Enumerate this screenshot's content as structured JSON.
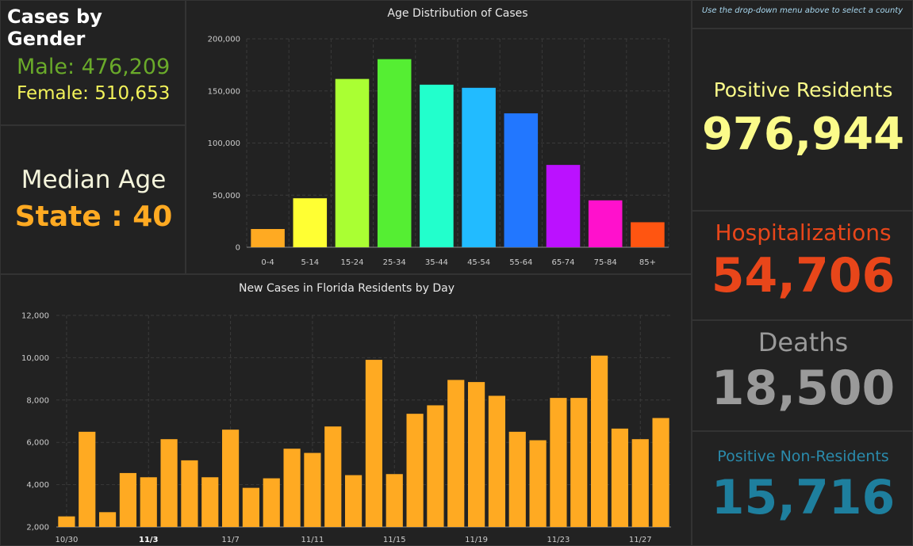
{
  "gender": {
    "title": "Cases by Gender",
    "male_text": "Male: 476,209",
    "female_text": "Female: 510,653",
    "male_color": "#6aaa2a",
    "female_color": "#f2f25a"
  },
  "median": {
    "title": "Median Age",
    "value_text": "State : 40"
  },
  "note": {
    "text": "Use the drop-down menu above to select a county"
  },
  "stats": {
    "positive_label": "Positive Residents",
    "positive_value": "976,944",
    "hosp_label": "Hospitalizations",
    "hosp_value": "54,706",
    "deaths_label": "Deaths",
    "deaths_value": "18,500",
    "nonres_label": "Positive Non-Residents",
    "nonres_value": "15,716"
  },
  "chart_data": [
    {
      "type": "bar",
      "title": "Age Distribution of Cases",
      "categories": [
        "0-4",
        "5-14",
        "15-24",
        "25-34",
        "35-44",
        "45-54",
        "55-64",
        "65-74",
        "75-84",
        "85+"
      ],
      "values": [
        17500,
        47000,
        161500,
        180500,
        156000,
        153000,
        128500,
        79000,
        45000,
        24000
      ],
      "colors": [
        "#ffaa22",
        "#ffff33",
        "#aaff33",
        "#55ee33",
        "#22ffcc",
        "#22bbff",
        "#2277ff",
        "#bb11ff",
        "#ff11cc",
        "#ff5511"
      ],
      "ylim": [
        0,
        200000
      ],
      "yticks": [
        0,
        50000,
        100000,
        150000,
        200000
      ],
      "ytick_labels": [
        "0",
        "50,000",
        "100,000",
        "150,000",
        "200,000"
      ],
      "grid": true
    },
    {
      "type": "bar",
      "title": "New Cases in Florida Residents by Day",
      "categories": [
        "10/30",
        "10/31",
        "11/1",
        "11/2",
        "11/3",
        "11/4",
        "11/5",
        "11/6",
        "11/7",
        "11/8",
        "11/9",
        "11/10",
        "11/11",
        "11/12",
        "11/13",
        "11/14",
        "11/15",
        "11/16",
        "11/17",
        "11/18",
        "11/19",
        "11/20",
        "11/21",
        "11/22",
        "11/23",
        "11/24",
        "11/25",
        "11/26",
        "11/27",
        "11/28"
      ],
      "values": [
        2500,
        6500,
        2700,
        4550,
        4350,
        6150,
        5150,
        4350,
        6600,
        3850,
        4300,
        5700,
        5500,
        6750,
        4450,
        9900,
        4500,
        7350,
        7750,
        8950,
        8850,
        8200,
        6500,
        6100,
        8100,
        8100,
        10100,
        6650,
        6150,
        7150
      ],
      "color": "#ffaa22",
      "ylim": [
        2000,
        12000
      ],
      "yticks": [
        2000,
        4000,
        6000,
        8000,
        10000,
        12000
      ],
      "ytick_labels": [
        "2,000",
        "4,000",
        "6,000",
        "8,000",
        "10,000",
        "12,000"
      ],
      "xtick_labels": [
        "10/30",
        "11/3",
        "11/7",
        "11/11",
        "11/15",
        "11/19",
        "11/23",
        "11/27"
      ],
      "xtick_indices": [
        0,
        4,
        8,
        12,
        16,
        20,
        24,
        28
      ],
      "bold_tick": "11/3",
      "grid": true
    }
  ]
}
